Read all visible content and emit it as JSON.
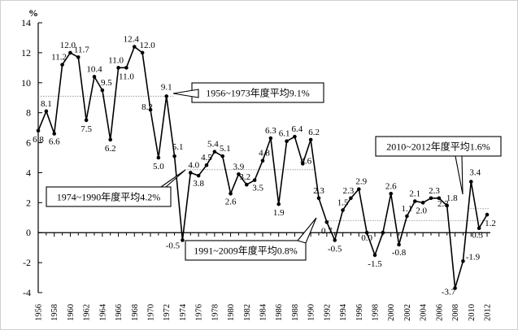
{
  "chart_data": {
    "type": "line",
    "ylabel": "%",
    "ylim": [
      -4,
      14
    ],
    "yticks": [
      -4,
      -2,
      0,
      2,
      4,
      6,
      8,
      10,
      12,
      14
    ],
    "xlim": [
      1956,
      2012
    ],
    "xticks": [
      1956,
      1958,
      1960,
      1962,
      1964,
      1966,
      1968,
      1970,
      1972,
      1974,
      1976,
      1978,
      1980,
      1982,
      1984,
      1986,
      1988,
      1990,
      1992,
      1994,
      1996,
      1998,
      2000,
      2002,
      2004,
      2006,
      2008,
      2010,
      2012
    ],
    "xtick_labels": [
      "1956",
      "1958",
      "1960",
      "1962",
      "1964",
      "1966",
      "1968",
      "1970",
      "1972",
      "1974",
      "1976",
      "1978",
      "1980",
      "1982",
      "1984",
      "1986",
      "1988",
      "1990",
      "1992",
      "1994",
      "1996",
      "1998",
      "2000",
      "2002",
      "2004",
      "2006",
      "2008",
      "2010",
      "2012"
    ],
    "grid": false,
    "series": [
      {
        "x": [
          1956,
          1957,
          1958,
          1959,
          1960,
          1961,
          1962,
          1963,
          1964,
          1965,
          1966,
          1967,
          1968,
          1969,
          1970,
          1971,
          1972,
          1973,
          1974,
          1975,
          1976,
          1977,
          1978,
          1979,
          1980,
          1981,
          1982,
          1983,
          1984,
          1985,
          1986,
          1987,
          1988,
          1989,
          1990,
          1991,
          1992,
          1993,
          1994,
          1995,
          1996,
          1997,
          1998,
          1999,
          2000,
          2001,
          2002,
          2003,
          2004,
          2005,
          2006,
          2007,
          2008,
          2009,
          2010,
          2011,
          2012
        ],
        "values": [
          6.8,
          8.1,
          6.6,
          11.2,
          12.0,
          11.7,
          7.5,
          10.4,
          9.5,
          6.2,
          11.0,
          11.0,
          12.4,
          12.0,
          8.2,
          5.0,
          9.1,
          5.1,
          -0.5,
          4.0,
          3.8,
          4.5,
          5.4,
          5.1,
          2.6,
          3.9,
          3.2,
          3.5,
          4.8,
          6.3,
          1.9,
          6.1,
          6.4,
          4.6,
          6.2,
          2.3,
          0.7,
          -0.5,
          1.5,
          2.3,
          2.9,
          0.0,
          -1.5,
          0.0,
          2.6,
          -0.8,
          1.1,
          2.1,
          2.0,
          2.3,
          2.3,
          1.8,
          -3.7,
          -1.9,
          3.4,
          0.3,
          1.2
        ]
      }
    ],
    "data_labels": [
      {
        "x": 1956,
        "y": 6.8,
        "text": "6.8"
      },
      {
        "x": 1957,
        "y": 8.1,
        "text": "8.1"
      },
      {
        "x": 1958,
        "y": 6.6,
        "text": "6.6"
      },
      {
        "x": 1959,
        "y": 11.2,
        "text": "11.2"
      },
      {
        "x": 1960,
        "y": 12.0,
        "text": "12.0"
      },
      {
        "x": 1961,
        "y": 11.7,
        "text": "11.7"
      },
      {
        "x": 1962,
        "y": 7.5,
        "text": "7.5"
      },
      {
        "x": 1963,
        "y": 10.4,
        "text": "10.4"
      },
      {
        "x": 1964,
        "y": 9.5,
        "text": "9.5"
      },
      {
        "x": 1965,
        "y": 6.2,
        "text": "6.2"
      },
      {
        "x": 1966,
        "y": 11.0,
        "text": "11.0"
      },
      {
        "x": 1967,
        "y": 11.0,
        "text": "11.0"
      },
      {
        "x": 1968,
        "y": 12.4,
        "text": "12.4"
      },
      {
        "x": 1969,
        "y": 12.0,
        "text": "12.0"
      },
      {
        "x": 1970,
        "y": 8.2,
        "text": "8.2"
      },
      {
        "x": 1971,
        "y": 5.0,
        "text": "5.0"
      },
      {
        "x": 1972,
        "y": 9.1,
        "text": "9.1"
      },
      {
        "x": 1973,
        "y": 5.1,
        "text": "5.1"
      },
      {
        "x": 1974,
        "y": -0.5,
        "text": "-0.5"
      },
      {
        "x": 1975,
        "y": 4.0,
        "text": "4.0"
      },
      {
        "x": 1976,
        "y": 3.8,
        "text": "3.8"
      },
      {
        "x": 1977,
        "y": 4.5,
        "text": "4.5"
      },
      {
        "x": 1978,
        "y": 5.4,
        "text": "5.4"
      },
      {
        "x": 1979,
        "y": 5.1,
        "text": "5.1"
      },
      {
        "x": 1980,
        "y": 2.6,
        "text": "2.6"
      },
      {
        "x": 1981,
        "y": 3.9,
        "text": "3.9"
      },
      {
        "x": 1982,
        "y": 3.2,
        "text": "3.2"
      },
      {
        "x": 1983,
        "y": 3.5,
        "text": "3.5"
      },
      {
        "x": 1984,
        "y": 4.8,
        "text": "4.8"
      },
      {
        "x": 1985,
        "y": 6.3,
        "text": "6.3"
      },
      {
        "x": 1986,
        "y": 1.9,
        "text": "1.9"
      },
      {
        "x": 1987,
        "y": 6.1,
        "text": "6.1"
      },
      {
        "x": 1988,
        "y": 6.4,
        "text": "6.4"
      },
      {
        "x": 1989,
        "y": 4.6,
        "text": "4.6"
      },
      {
        "x": 1990,
        "y": 6.2,
        "text": "6.2"
      },
      {
        "x": 1991,
        "y": 2.3,
        "text": "2.3"
      },
      {
        "x": 1992,
        "y": 0.7,
        "text": "0.7"
      },
      {
        "x": 1993,
        "y": -0.5,
        "text": "-0.5"
      },
      {
        "x": 1994,
        "y": 1.5,
        "text": "1.5"
      },
      {
        "x": 1995,
        "y": 2.3,
        "text": "2.3"
      },
      {
        "x": 1996,
        "y": 2.9,
        "text": "2.9"
      },
      {
        "x": 1997,
        "y": 0.0,
        "text": "0.0"
      },
      {
        "x": 1998,
        "y": -1.5,
        "text": "-1.5"
      },
      {
        "x": 2000,
        "y": 2.6,
        "text": "2.6"
      },
      {
        "x": 2001,
        "y": -0.8,
        "text": "-0.8"
      },
      {
        "x": 2002,
        "y": 1.1,
        "text": "1.1"
      },
      {
        "x": 2003,
        "y": 2.1,
        "text": "2.1"
      },
      {
        "x": 2004,
        "y": 2.0,
        "text": "2.0"
      },
      {
        "x": 2005,
        "y": 2.3,
        "text": "2.3"
      },
      {
        "x": 2006,
        "y": 2.3,
        "text": "2.3"
      },
      {
        "x": 2007,
        "y": 1.8,
        "text": "1.8"
      },
      {
        "x": 2008,
        "y": -3.7,
        "text": "-3.7"
      },
      {
        "x": 2009,
        "y": -1.9,
        "text": "-1.9"
      },
      {
        "x": 2010,
        "y": 3.4,
        "text": "3.4"
      },
      {
        "x": 2011,
        "y": 0.3,
        "text": "0.3"
      },
      {
        "x": 2012,
        "y": 1.2,
        "text": "1.2"
      }
    ],
    "average_lines": [
      {
        "x_start": 1956,
        "x_end": 1973,
        "value": 9.1
      },
      {
        "x_start": 1974,
        "x_end": 1990,
        "value": 4.2
      },
      {
        "x_start": 1991,
        "x_end": 2009,
        "value": 0.8
      },
      {
        "x_start": 2010,
        "x_end": 2012,
        "value": 1.6
      }
    ],
    "annotations": [
      {
        "text": "1956~1973年度平均9.1%"
      },
      {
        "text": "1974~1990年度平均4.2%"
      },
      {
        "text": "1991~2009年度平均0.8%"
      },
      {
        "text": "2010~2012年度平均1.6%"
      }
    ]
  }
}
